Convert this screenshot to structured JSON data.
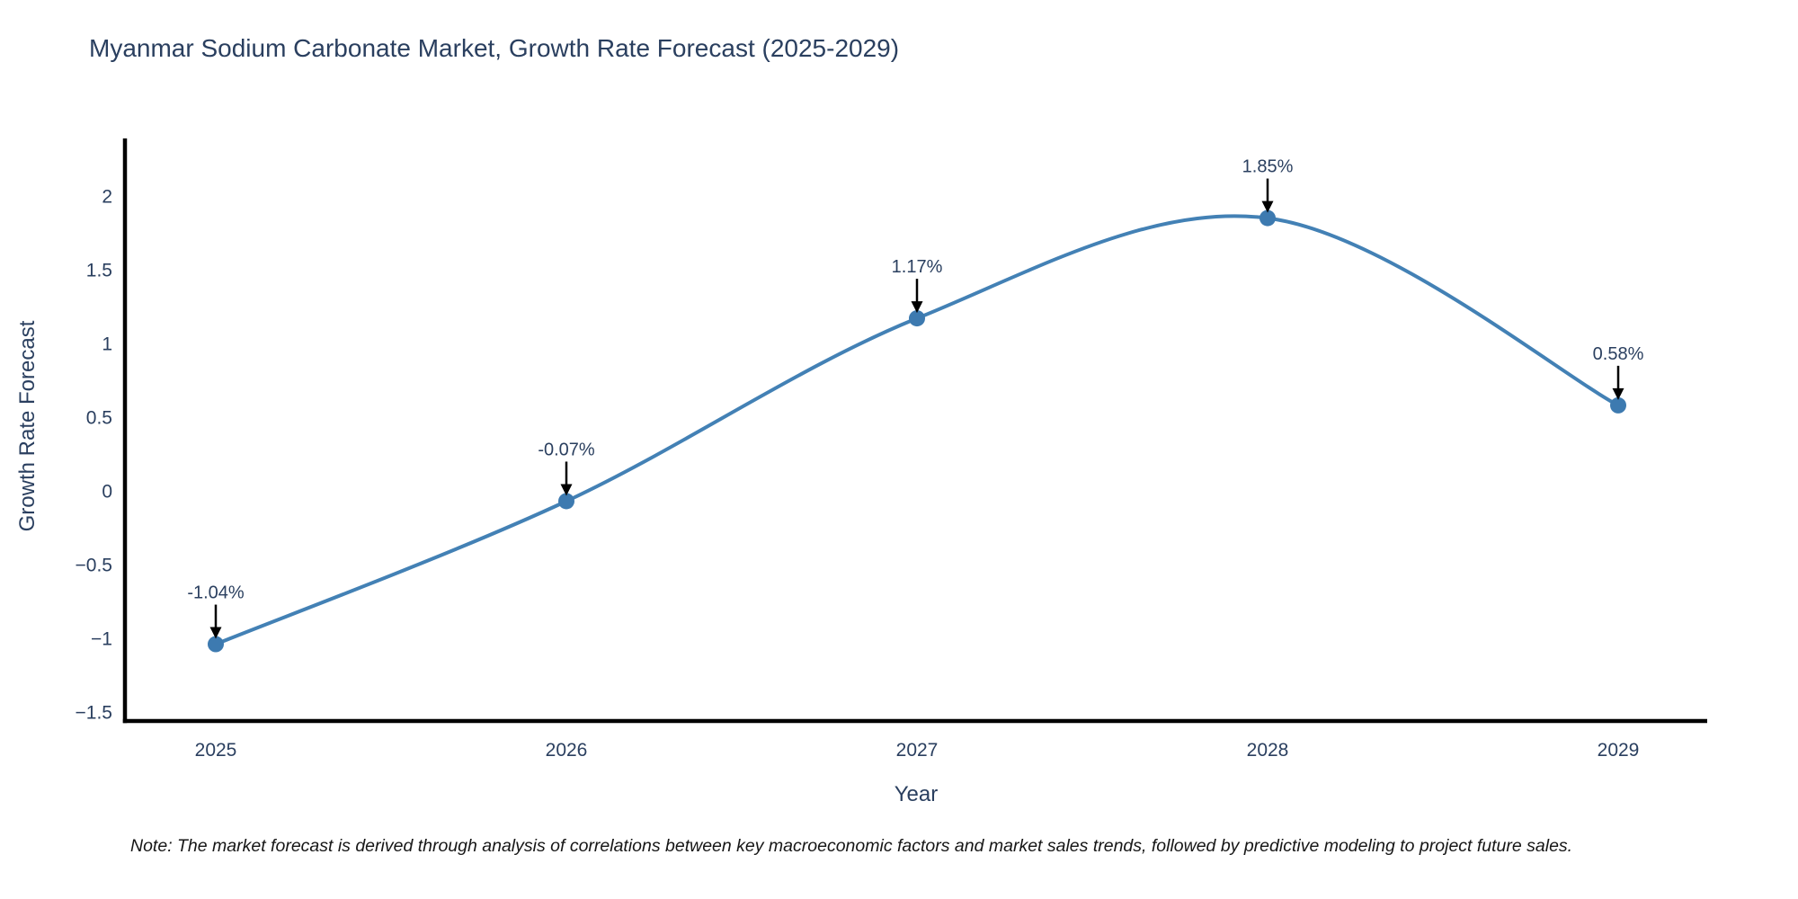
{
  "note": {
    "text": "Note: The market forecast is derived through analysis of correlations between key macroeconomic factors and market sales trends, followed by predictive modeling to project future sales."
  },
  "chart_data": {
    "type": "line",
    "title": "Myanmar Sodium Carbonate Market, Growth Rate Forecast (2025-2029)",
    "xlabel": "Year",
    "ylabel": "Growth Rate Forecast",
    "x": [
      2025,
      2026,
      2027,
      2028,
      2029
    ],
    "y": [
      -1.04,
      -0.07,
      1.17,
      1.85,
      0.58
    ],
    "point_labels": [
      "-1.04%",
      "-0.07%",
      "1.17%",
      "1.85%",
      "0.58%"
    ],
    "xtick_labels": [
      "2025",
      "2026",
      "2027",
      "2028",
      "2029"
    ],
    "ytick_values": [
      -1.5,
      -1,
      -0.5,
      0,
      0.5,
      1,
      1.5,
      2
    ],
    "ytick_labels": [
      "−1.5",
      "−1",
      "−0.5",
      "0",
      "0.5",
      "1",
      "1.5",
      "2"
    ],
    "ylim": [
      -1.5,
      2.35
    ],
    "line_shape": "spline",
    "grid": false,
    "legend": "none",
    "colors": {
      "line": "#4381b5",
      "marker": "#3d7ab0",
      "axis": "#000000",
      "text": "#2a3f5f",
      "annotation_arrow": "#000000",
      "note_text": "#161616",
      "background": "#ffffff"
    }
  }
}
